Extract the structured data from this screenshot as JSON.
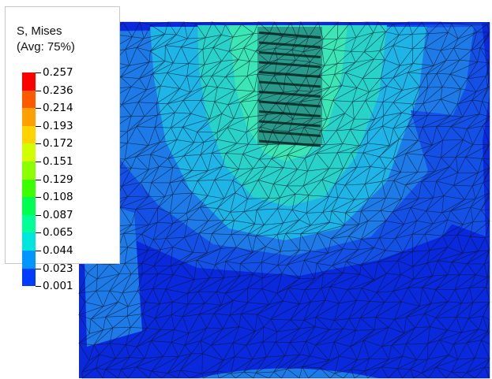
{
  "legend": {
    "title_line1": "S, Mises",
    "title_line2": "(Avg: 75%)",
    "tick_labels": [
      "0.257",
      "0.236",
      "0.214",
      "0.193",
      "0.172",
      "0.151",
      "0.129",
      "0.108",
      "0.087",
      "0.065",
      "0.044",
      "0.023",
      "0.001"
    ],
    "colors": [
      "#ff0000",
      "#ff5a00",
      "#ffa000",
      "#ffd200",
      "#d2ff00",
      "#8cff00",
      "#3cff00",
      "#00ff50",
      "#00ff96",
      "#00e6dc",
      "#0096ff",
      "#003cff",
      "#0000ff"
    ]
  },
  "contour_colors": {
    "deep_blue": "#0a28dc",
    "blue": "#1450e6",
    "mid_blue": "#1e7ae6",
    "cyan": "#1eb4e6",
    "teal": "#28d2c8",
    "aqua_green": "#3ce6b4",
    "mesh_line": "#0a1428"
  }
}
